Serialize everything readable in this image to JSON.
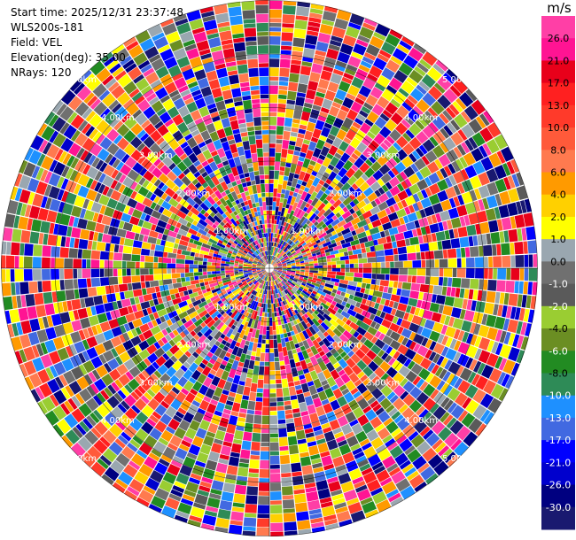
{
  "info": {
    "start_time": "Start time: 2025/12/31 23:37:48",
    "instrument": "WLS200s-181",
    "field": "Field: VEL",
    "elevation": "Elevation(deg): 35.00",
    "nrays": "NRays: 120"
  },
  "chart_data": {
    "type": "heatmap",
    "projection": "ppi-polar",
    "field": "VEL",
    "unit": "m/s",
    "nrays": 120,
    "range_rings_km": [
      1,
      2,
      3,
      4,
      5
    ],
    "ring_labels": [
      "1.00km",
      "2.00km",
      "3.00km",
      "4.00km",
      "5.00km"
    ],
    "colorbar": {
      "ticks": [
        "26.0",
        "21.0",
        "17.0",
        "13.0",
        "10.0",
        "8.0",
        "6.0",
        "4.0",
        "2.0",
        "1.0",
        "0.0",
        "-1.0",
        "-2.0",
        "-4.0",
        "-6.0",
        "-8.0",
        "-10.0",
        "-13.0",
        "-17.0",
        "-21.0",
        "-26.0",
        "-30.0"
      ],
      "colors": [
        "#ff3fa6",
        "#ff1493",
        "#e8001a",
        "#ff2020",
        "#ff3a2a",
        "#ff5a3a",
        "#ff7a4f",
        "#ff9a00",
        "#ffd000",
        "#ffff00",
        "#9aa7b0",
        "#707070",
        "#5a5a5a",
        "#9acd32",
        "#6b8e23",
        "#228b22",
        "#2e8b57",
        "#1e90ff",
        "#4169e1",
        "#0000ff",
        "#0000cd",
        "#000080",
        "#191970"
      ]
    }
  }
}
